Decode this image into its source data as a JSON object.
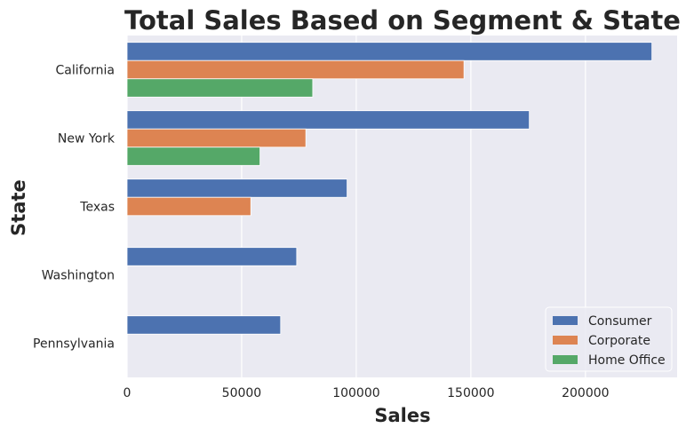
{
  "chart_data": {
    "type": "bar",
    "orientation": "horizontal",
    "title": "Total Sales Based on Segment & State",
    "xlabel": "Sales",
    "ylabel": "State",
    "categories": [
      "California",
      "New York",
      "Texas",
      "Washington",
      "Pennsylvania"
    ],
    "series": [
      {
        "name": "Consumer",
        "color": "#4c72b0",
        "values": [
          229000,
          175500,
          96000,
          74000,
          67000
        ]
      },
      {
        "name": "Corporate",
        "color": "#dd8452",
        "values": [
          147000,
          78000,
          54000,
          null,
          null
        ]
      },
      {
        "name": "Home Office",
        "color": "#55a868",
        "values": [
          81000,
          58000,
          null,
          null,
          null
        ]
      }
    ],
    "xlim": [
      0,
      240000
    ],
    "xticks": [
      0,
      50000,
      100000,
      150000,
      200000
    ],
    "xtick_labels": [
      "0",
      "50000",
      "100000",
      "150000",
      "200000"
    ],
    "grid": true,
    "legend_position": "lower-right",
    "background": "#eaeaf2"
  }
}
